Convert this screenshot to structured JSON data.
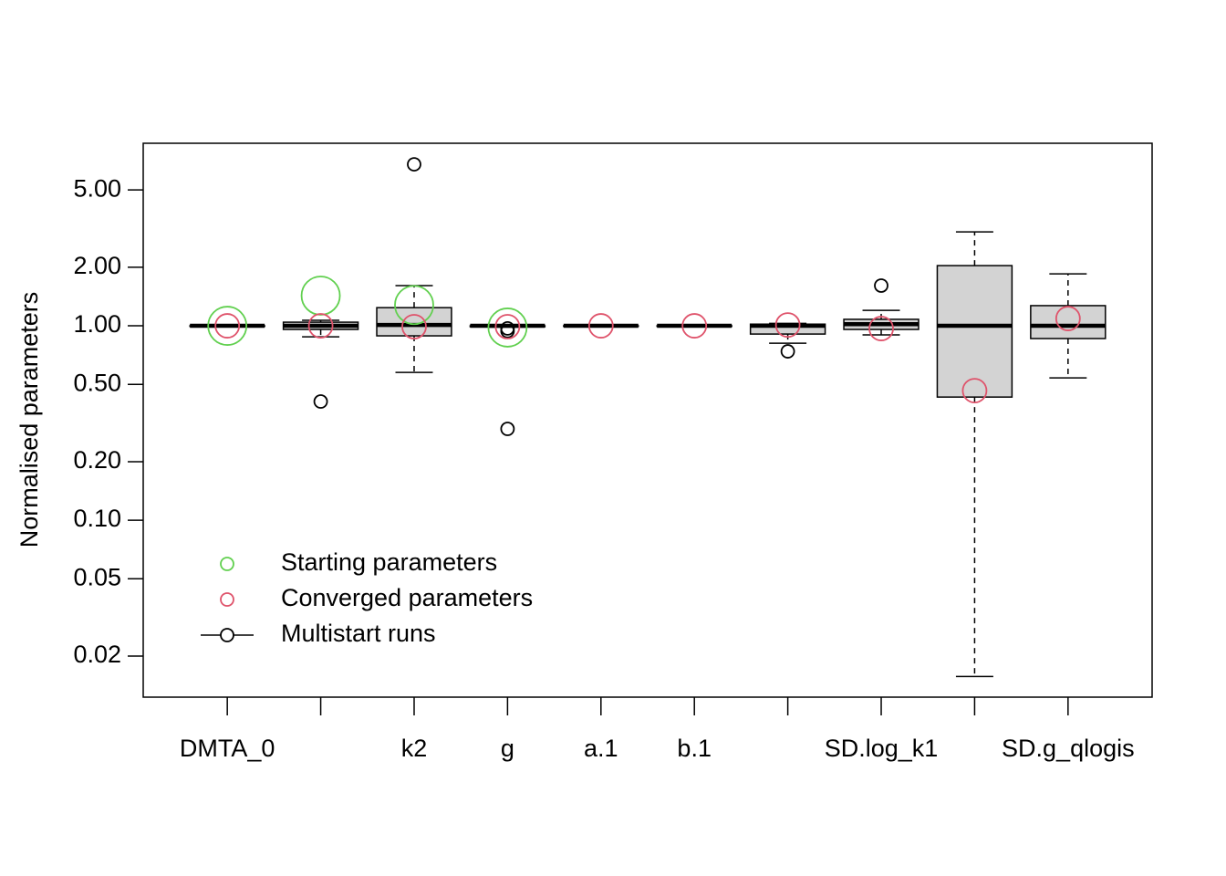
{
  "chart_data": {
    "type": "boxplot",
    "y_label": "Normalised parameters",
    "log_y": true,
    "categories": [
      "DMTA_0",
      null,
      "k2",
      "g",
      "a.1",
      "b.1",
      null,
      "SD.log_k1",
      null,
      "SD.g_qlogis"
    ],
    "ylim": [
      0.0123,
      8.69
    ],
    "yticks": [
      {
        "value": 0.02,
        "label": "0.02"
      },
      {
        "value": 0.05,
        "label": "0.05"
      },
      {
        "value": 0.1,
        "label": "0.10"
      },
      {
        "value": 0.2,
        "label": "0.20"
      },
      {
        "value": 0.5,
        "label": "0.50"
      },
      {
        "value": 1,
        "label": "1.00"
      },
      {
        "value": 2,
        "label": "2.00"
      },
      {
        "value": 5,
        "label": "5.00"
      }
    ],
    "legend": "bottomleft",
    "series": [
      {
        "name": "Starting parameters",
        "color": "#61D04F",
        "values": [
          1.0,
          1.43,
          1.28,
          0.98,
          null,
          null,
          null,
          null,
          null,
          null
        ]
      },
      {
        "name": "Converged parameters",
        "color": "#DF536B",
        "values": [
          1.0,
          1.0,
          0.99,
          0.99,
          1.0,
          1.0,
          1.01,
          0.968,
          0.464,
          1.09
        ]
      },
      {
        "name": "Multistart runs",
        "color": "#000000",
        "box_color": "#D3D3D3",
        "boxes": [
          {
            "low": 0.99,
            "q1": 0.995,
            "median": 1.0,
            "q3": 1.0,
            "high": 1.01,
            "outliers": []
          },
          {
            "low": 0.878,
            "q1": 0.958,
            "median": 1.0,
            "q3": 1.044,
            "high": 1.067,
            "outliers": [
              0.408
            ]
          },
          {
            "low": 0.576,
            "q1": 0.888,
            "median": 1.01,
            "q3": 1.24,
            "high": 1.61,
            "outliers": [
              6.77
            ]
          },
          {
            "low": 0.985,
            "q1": 0.99,
            "median": 1.0,
            "q3": 1.0,
            "high": 1.01,
            "outliers": [
              0.295,
              0.94,
              0.97
            ]
          },
          {
            "low": 0.995,
            "q1": 0.998,
            "median": 1.0,
            "q3": 1.0,
            "high": 1.005,
            "outliers": []
          },
          {
            "low": 0.99,
            "q1": 0.995,
            "median": 1.0,
            "q3": 1.0,
            "high": 1.005,
            "outliers": []
          },
          {
            "low": 0.814,
            "q1": 0.907,
            "median": 1.0,
            "q3": 1.02,
            "high": 1.03,
            "outliers": [
              0.739
            ]
          },
          {
            "low": 0.898,
            "q1": 0.958,
            "median": 1.02,
            "q3": 1.08,
            "high": 1.2,
            "outliers": [
              1.61
            ]
          },
          {
            "low": 0.0157,
            "q1": 0.43,
            "median": 1.0,
            "q3": 2.04,
            "high": 3.04,
            "outliers": []
          },
          {
            "low": 0.54,
            "q1": 0.86,
            "median": 1.0,
            "q3": 1.27,
            "high": 1.85,
            "outliers": []
          }
        ]
      }
    ]
  }
}
